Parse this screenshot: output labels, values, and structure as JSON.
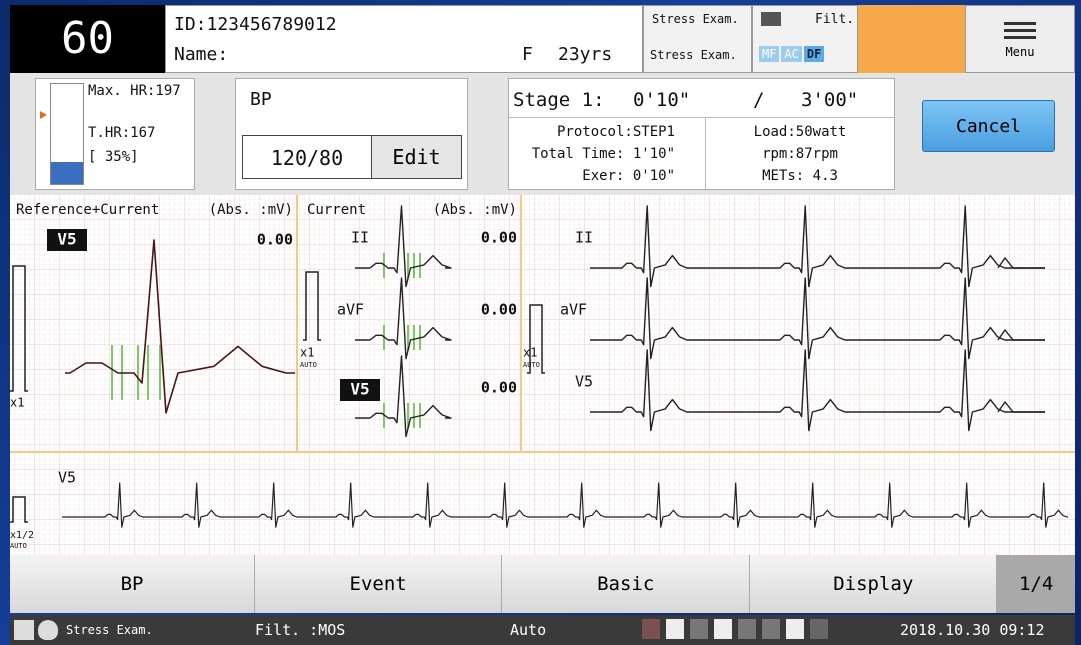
{
  "header": {
    "heart_rate": "60",
    "patient_id": "ID:123456789012",
    "name_label": "Name:",
    "sex": "F",
    "age": "23yrs",
    "stress_icon_label": "Stress Exam.",
    "stress_exam": "Stress Exam.",
    "filter_label": "Filt.",
    "filters": [
      "MF",
      "AC",
      "DF"
    ],
    "menu": "Menu"
  },
  "hr_panel": {
    "max_hr": "Max. HR:197",
    "target_hr": "T.HR:167",
    "percent": "[ 35%]"
  },
  "bp_panel": {
    "title": "BP",
    "value": "120/80",
    "edit": "Edit"
  },
  "stage_panel": {
    "stage": "Stage 1:",
    "elapsed": "0'10\"",
    "separator": "/",
    "duration": "3'00\"",
    "protocol": "Protocol:STEP1",
    "total_time": "Total Time: 1'10\"",
    "exercise_time": "Exer: 0'10\"",
    "load": "Load:50watt",
    "rpm": "rpm:87rpm",
    "mets": "METs: 4.3"
  },
  "cancel": "Cancel",
  "ecg": {
    "reference": {
      "title": "Reference+Current",
      "units": "(Abs. :mV)",
      "lead": "V5",
      "value": "0.00",
      "scale": "x1"
    },
    "current": {
      "title": "Current",
      "units": "(Abs. :mV)",
      "leads": [
        {
          "name": "II",
          "value": "0.00"
        },
        {
          "name": "aVF",
          "value": "0.00"
        },
        {
          "name": "V5",
          "value": "0.00"
        }
      ],
      "scale": "x1",
      "mode": "AUTO"
    },
    "trend": {
      "leads": [
        "II",
        "aVF",
        "V5"
      ],
      "scale": "x1",
      "mode": "AUTO"
    },
    "rhythm": {
      "lead": "V5",
      "scale": "x1/2",
      "mode": "AUTO"
    }
  },
  "tabs": [
    "BP",
    "Event",
    "Basic",
    "Display",
    "1/4"
  ],
  "status": {
    "exam": "Stress Exam.",
    "filter": "Filt. :MOS",
    "mode": "Auto",
    "datetime": "2018.10.30 09:12"
  }
}
